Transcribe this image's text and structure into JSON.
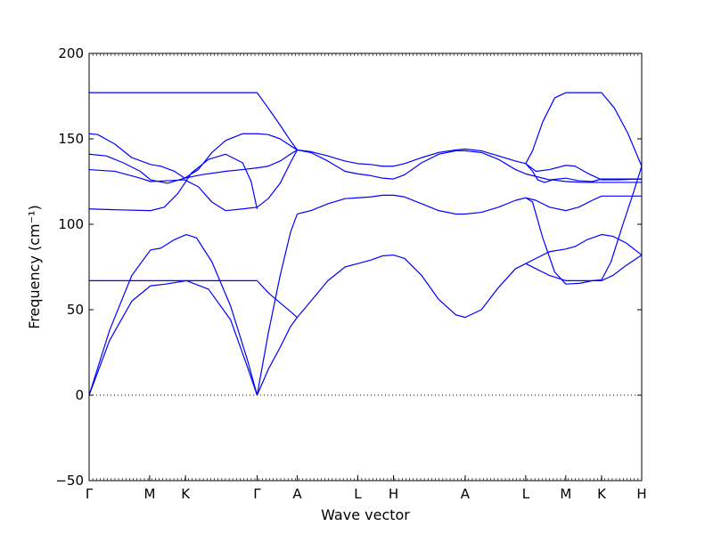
{
  "chart_data": {
    "type": "line",
    "title": "",
    "xlabel": "Wave vector",
    "ylabel": "Frequency (cm⁻¹)",
    "ylim": [
      -50,
      200
    ],
    "yticks": [
      -50,
      0,
      50,
      100,
      150,
      200
    ],
    "ytick_labels": [
      "−50",
      "0",
      "50",
      "100",
      "150",
      "200"
    ],
    "kpoints": [
      {
        "label": "Γ",
        "x": 0.0
      },
      {
        "label": "M",
        "x": 0.355
      },
      {
        "label": "K",
        "x": 0.565
      },
      {
        "label": "Γ",
        "x": 0.985
      },
      {
        "label": "A",
        "x": 1.22
      },
      {
        "label": "L",
        "x": 1.575
      },
      {
        "label": "H",
        "x": 1.785
      },
      {
        "label": "A",
        "x": 2.205
      },
      {
        "label": "L",
        "x": 2.56
      },
      {
        "label": "M",
        "x": 2.795
      },
      {
        "label": "K",
        "x": 3.005
      },
      {
        "label": "H",
        "x": 3.24
      }
    ],
    "xlim": [
      0,
      3.24
    ],
    "zero_line": true,
    "line_color": "#0000ff",
    "series": [
      {
        "values": [
          [
            0,
            0
          ],
          [
            0.12,
            38
          ],
          [
            0.25,
            70
          ],
          [
            0.36,
            85
          ],
          [
            0.42,
            86
          ],
          [
            0.5,
            91
          ],
          [
            0.57,
            94
          ],
          [
            0.63,
            92
          ],
          [
            0.72,
            78
          ],
          [
            0.83,
            52
          ],
          [
            0.93,
            20
          ],
          [
            0.985,
            0
          ]
        ]
      },
      {
        "values": [
          [
            0,
            0
          ],
          [
            0.12,
            32
          ],
          [
            0.25,
            55
          ],
          [
            0.36,
            64
          ],
          [
            0.45,
            65
          ],
          [
            0.57,
            67
          ],
          [
            0.7,
            62
          ],
          [
            0.83,
            44
          ],
          [
            0.93,
            16
          ],
          [
            0.985,
            0
          ]
        ]
      },
      {
        "values": [
          [
            0,
            67
          ],
          [
            0.3,
            67
          ],
          [
            0.6,
            67
          ],
          [
            0.9,
            67
          ],
          [
            0.985,
            67
          ]
        ]
      },
      {
        "values": [
          [
            0,
            109
          ],
          [
            0.15,
            108.5
          ],
          [
            0.36,
            108
          ],
          [
            0.44,
            110
          ],
          [
            0.52,
            118
          ],
          [
            0.6,
            130
          ],
          [
            0.7,
            138
          ],
          [
            0.8,
            141
          ],
          [
            0.9,
            136
          ],
          [
            0.95,
            125
          ],
          [
            0.985,
            109
          ]
        ]
      },
      {
        "values": [
          [
            0,
            132
          ],
          [
            0.15,
            131
          ],
          [
            0.3,
            127
          ],
          [
            0.36,
            125
          ],
          [
            0.46,
            125.5
          ],
          [
            0.56,
            126
          ],
          [
            0.64,
            122
          ],
          [
            0.72,
            113
          ],
          [
            0.8,
            108
          ],
          [
            0.9,
            109
          ],
          [
            0.985,
            110
          ]
        ]
      },
      {
        "values": [
          [
            0,
            141
          ],
          [
            0.1,
            140
          ],
          [
            0.2,
            136
          ],
          [
            0.3,
            131
          ],
          [
            0.36,
            126
          ],
          [
            0.46,
            124
          ],
          [
            0.56,
            127
          ],
          [
            0.66,
            129
          ],
          [
            0.8,
            131
          ],
          [
            0.9,
            132
          ],
          [
            0.985,
            133
          ]
        ]
      },
      {
        "values": [
          [
            0,
            153
          ],
          [
            0.05,
            152.5
          ],
          [
            0.15,
            147
          ],
          [
            0.25,
            139
          ],
          [
            0.36,
            135
          ],
          [
            0.42,
            134
          ],
          [
            0.5,
            131
          ],
          [
            0.56,
            127
          ],
          [
            0.64,
            132
          ],
          [
            0.72,
            142
          ],
          [
            0.8,
            149
          ],
          [
            0.9,
            153
          ],
          [
            0.985,
            153
          ]
        ]
      },
      {
        "values": [
          [
            0,
            177
          ],
          [
            0.3,
            177
          ],
          [
            0.6,
            177
          ],
          [
            0.9,
            177
          ],
          [
            0.985,
            177
          ]
        ]
      },
      {
        "values": [
          [
            0.985,
            0
          ],
          [
            1.05,
            15
          ],
          [
            1.12,
            28
          ],
          [
            1.18,
            40
          ],
          [
            1.22,
            45.5
          ]
        ]
      },
      {
        "values": [
          [
            0.985,
            0
          ],
          [
            1.05,
            36
          ],
          [
            1.12,
            70
          ],
          [
            1.18,
            95
          ],
          [
            1.22,
            106
          ]
        ]
      },
      {
        "values": [
          [
            0.985,
            67
          ],
          [
            1.05,
            60
          ],
          [
            1.12,
            54
          ],
          [
            1.18,
            49
          ],
          [
            1.22,
            45.5
          ]
        ]
      },
      {
        "values": [
          [
            0.985,
            110
          ],
          [
            1.05,
            115
          ],
          [
            1.12,
            124
          ],
          [
            1.18,
            136
          ],
          [
            1.22,
            143.5
          ]
        ]
      },
      {
        "values": [
          [
            0.985,
            133
          ],
          [
            1.05,
            134
          ],
          [
            1.12,
            137
          ],
          [
            1.18,
            141
          ],
          [
            1.22,
            143.5
          ]
        ]
      },
      {
        "values": [
          [
            0.985,
            153
          ],
          [
            1.05,
            152.5
          ],
          [
            1.12,
            150
          ],
          [
            1.18,
            146
          ],
          [
            1.22,
            143.5
          ]
        ]
      },
      {
        "values": [
          [
            0.985,
            177
          ],
          [
            1.05,
            168
          ],
          [
            1.12,
            158
          ],
          [
            1.18,
            149
          ],
          [
            1.22,
            143.5
          ]
        ]
      },
      {
        "values": [
          [
            1.22,
            45.5
          ],
          [
            1.3,
            55
          ],
          [
            1.4,
            67
          ],
          [
            1.5,
            75
          ],
          [
            1.575,
            77
          ],
          [
            1.65,
            79
          ],
          [
            1.72,
            81.5
          ],
          [
            1.785,
            82
          ],
          [
            1.85,
            80
          ],
          [
            1.95,
            70
          ],
          [
            2.05,
            56
          ],
          [
            2.15,
            47
          ],
          [
            2.205,
            45.5
          ],
          [
            2.3,
            50
          ],
          [
            2.4,
            63
          ],
          [
            2.5,
            74
          ],
          [
            2.56,
            77
          ]
        ]
      },
      {
        "values": [
          [
            1.22,
            106
          ],
          [
            1.3,
            108
          ],
          [
            1.4,
            112
          ],
          [
            1.5,
            115
          ],
          [
            1.575,
            115.5
          ],
          [
            1.65,
            116
          ],
          [
            1.72,
            117
          ],
          [
            1.785,
            117
          ],
          [
            1.85,
            116
          ],
          [
            1.95,
            112
          ],
          [
            2.05,
            108
          ],
          [
            2.15,
            106
          ],
          [
            2.205,
            106
          ],
          [
            2.3,
            107
          ],
          [
            2.4,
            110
          ],
          [
            2.5,
            114
          ],
          [
            2.56,
            115.5
          ]
        ]
      },
      {
        "values": [
          [
            1.22,
            143.5
          ],
          [
            1.3,
            142
          ],
          [
            1.4,
            137
          ],
          [
            1.5,
            131
          ],
          [
            1.575,
            129.5
          ],
          [
            1.65,
            128.5
          ],
          [
            1.72,
            127
          ],
          [
            1.785,
            126.5
          ],
          [
            1.85,
            129
          ],
          [
            1.95,
            136
          ],
          [
            2.05,
            141
          ],
          [
            2.15,
            143
          ],
          [
            2.205,
            143
          ],
          [
            2.3,
            142
          ],
          [
            2.4,
            138
          ],
          [
            2.5,
            132
          ],
          [
            2.56,
            129.5
          ]
        ]
      },
      {
        "values": [
          [
            1.22,
            143.5
          ],
          [
            1.3,
            142.5
          ],
          [
            1.4,
            140
          ],
          [
            1.5,
            137
          ],
          [
            1.575,
            135.5
          ],
          [
            1.65,
            135
          ],
          [
            1.72,
            134
          ],
          [
            1.785,
            134
          ],
          [
            1.85,
            135.5
          ],
          [
            1.95,
            139
          ],
          [
            2.05,
            142
          ],
          [
            2.15,
            143.5
          ],
          [
            2.205,
            144
          ],
          [
            2.3,
            143
          ],
          [
            2.4,
            140
          ],
          [
            2.5,
            137
          ],
          [
            2.56,
            135.5
          ]
        ]
      },
      {
        "values": [
          [
            2.56,
            77
          ],
          [
            2.62,
            80
          ],
          [
            2.7,
            84
          ],
          [
            2.795,
            85.5
          ],
          [
            2.85,
            87
          ],
          [
            2.92,
            91
          ],
          [
            3.005,
            94
          ],
          [
            3.07,
            93
          ],
          [
            3.15,
            89
          ],
          [
            3.24,
            82
          ]
        ]
      },
      {
        "values": [
          [
            2.56,
            77
          ],
          [
            2.62,
            74
          ],
          [
            2.7,
            70
          ],
          [
            2.795,
            67
          ],
          [
            2.85,
            67
          ],
          [
            2.92,
            67
          ],
          [
            3.005,
            67
          ],
          [
            3.07,
            70
          ],
          [
            3.15,
            76
          ],
          [
            3.24,
            82
          ]
        ]
      },
      {
        "values": [
          [
            2.56,
            115.5
          ],
          [
            2.6,
            113
          ],
          [
            2.66,
            92
          ],
          [
            2.73,
            72
          ],
          [
            2.795,
            65
          ],
          [
            2.88,
            65.5
          ],
          [
            2.95,
            67
          ],
          [
            3.005,
            67.5
          ],
          [
            3.06,
            78
          ],
          [
            3.13,
            100
          ],
          [
            3.19,
            118
          ],
          [
            3.24,
            134
          ]
        ]
      },
      {
        "values": [
          [
            2.56,
            115.5
          ],
          [
            2.62,
            114
          ],
          [
            2.7,
            110
          ],
          [
            2.795,
            108
          ],
          [
            2.87,
            110
          ],
          [
            2.95,
            114
          ],
          [
            3.005,
            116.5
          ],
          [
            3.1,
            116.5
          ],
          [
            3.24,
            116.5
          ]
        ]
      },
      {
        "values": [
          [
            2.56,
            129.5
          ],
          [
            2.62,
            128
          ],
          [
            2.7,
            126
          ],
          [
            2.795,
            127
          ],
          [
            2.87,
            125.5
          ],
          [
            2.95,
            125
          ],
          [
            3.005,
            126.5
          ],
          [
            3.1,
            126.5
          ],
          [
            3.24,
            126.5
          ]
        ]
      },
      {
        "values": [
          [
            2.56,
            135.5
          ],
          [
            2.62,
            131
          ],
          [
            2.7,
            132
          ],
          [
            2.795,
            134.5
          ],
          [
            2.85,
            134
          ],
          [
            2.92,
            130
          ],
          [
            3.005,
            126
          ],
          [
            3.1,
            126
          ],
          [
            3.24,
            126.5
          ]
        ]
      },
      {
        "values": [
          [
            2.56,
            135.5
          ],
          [
            2.6,
            143
          ],
          [
            2.66,
            160
          ],
          [
            2.73,
            174
          ],
          [
            2.795,
            177
          ],
          [
            2.9,
            177
          ],
          [
            3.005,
            177
          ],
          [
            3.08,
            168
          ],
          [
            3.16,
            153
          ],
          [
            3.24,
            134
          ]
        ]
      },
      {
        "values": [
          [
            2.56,
            135.5
          ],
          [
            2.6,
            131
          ],
          [
            2.63,
            126
          ],
          [
            2.67,
            124.5
          ],
          [
            2.72,
            126
          ],
          [
            2.795,
            125
          ],
          [
            2.9,
            124.5
          ],
          [
            3.005,
            124.5
          ],
          [
            3.12,
            124.5
          ],
          [
            3.24,
            124.5
          ]
        ]
      }
    ]
  }
}
